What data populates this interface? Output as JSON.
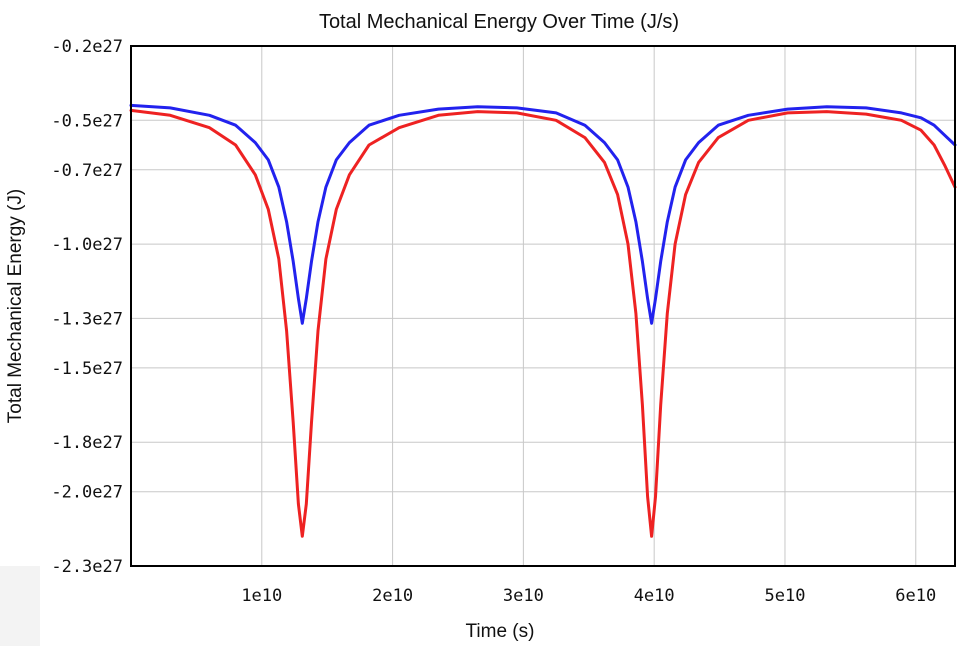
{
  "chart_data": {
    "type": "line",
    "title": "Total Mechanical Energy Over Time (J/s)",
    "xlabel": "Time (s)",
    "ylabel": "Total Mechanical Energy (J)",
    "xlim": [
      0,
      63000000000
    ],
    "ylim": [
      -2.3e+27,
      -2e+26
    ],
    "x_ticks": [
      {
        "value": 10000000000,
        "label": "1e10"
      },
      {
        "value": 20000000000,
        "label": "2e10"
      },
      {
        "value": 30000000000,
        "label": "3e10"
      },
      {
        "value": 40000000000,
        "label": "4e10"
      },
      {
        "value": 50000000000,
        "label": "5e10"
      },
      {
        "value": 60000000000,
        "label": "6e10"
      }
    ],
    "y_ticks": [
      {
        "value": -2e+26,
        "label": "-0.2e27"
      },
      {
        "value": -5e+26,
        "label": "-0.5e27"
      },
      {
        "value": -7e+26,
        "label": "-0.7e27"
      },
      {
        "value": -1e+27,
        "label": "-1.0e27"
      },
      {
        "value": -1.3e+27,
        "label": "-1.3e27"
      },
      {
        "value": -1.5e+27,
        "label": "-1.5e27"
      },
      {
        "value": -1.8e+27,
        "label": "-1.8e27"
      },
      {
        "value": -2e+27,
        "label": "-2.0e27"
      },
      {
        "value": -2.3e+27,
        "label": "-2.3e27"
      }
    ],
    "grid": true,
    "legend": "none",
    "series": [
      {
        "color": "#2222ee",
        "x": [
          0,
          3000000000,
          6000000000,
          8000000000,
          9500000000,
          10500000000,
          11300000000,
          11900000000,
          12400000000,
          12800000000,
          13100000000,
          13400000000,
          13800000000,
          14300000000,
          14900000000,
          15700000000,
          16700000000,
          18200000000,
          20500000000,
          23500000000,
          26500000000,
          29500000000,
          32500000000,
          34700000000,
          36200000000,
          37200000000,
          38000000000,
          38600000000,
          39100000000,
          39500000000,
          39800000000,
          40100000000,
          40500000000,
          41000000000,
          41600000000,
          42400000000,
          43400000000,
          44900000000,
          47200000000,
          50200000000,
          53200000000,
          56200000000,
          58900000000,
          60400000000,
          61400000000,
          62200000000,
          63000000000
        ],
        "y": [
          -4.4e+26,
          -4.5e+26,
          -4.8e+26,
          -5.2e+26,
          -5.9e+26,
          -6.6e+26,
          -7.7e+26,
          -9.1e+26,
          -1.07e+27,
          -1.22e+27,
          -1.32e+27,
          -1.22e+27,
          -1.07e+27,
          -9.1e+26,
          -7.7e+26,
          -6.6e+26,
          -5.9e+26,
          -5.2e+26,
          -4.8e+26,
          -4.55e+26,
          -4.45e+26,
          -4.5e+26,
          -4.7e+26,
          -5.2e+26,
          -5.9e+26,
          -6.6e+26,
          -7.7e+26,
          -9.1e+26,
          -1.07e+27,
          -1.22e+27,
          -1.32e+27,
          -1.22e+27,
          -1.07e+27,
          -9.1e+26,
          -7.7e+26,
          -6.6e+26,
          -5.9e+26,
          -5.2e+26,
          -4.8e+26,
          -4.55e+26,
          -4.45e+26,
          -4.5e+26,
          -4.7e+26,
          -4.9e+26,
          -5.2e+26,
          -5.6e+26,
          -6e+26
        ]
      },
      {
        "color": "#ee2222",
        "x": [
          0,
          3000000000,
          6000000000,
          8000000000,
          9500000000,
          10500000000,
          11300000000,
          11900000000,
          12400000000,
          12800000000,
          13100000000,
          13400000000,
          13800000000,
          14300000000,
          14900000000,
          15700000000,
          16700000000,
          18200000000,
          20500000000,
          23500000000,
          26500000000,
          29500000000,
          32500000000,
          34700000000,
          36200000000,
          37200000000,
          38000000000,
          38600000000,
          39100000000,
          39500000000,
          39800000000,
          40100000000,
          40500000000,
          41000000000,
          41600000000,
          42400000000,
          43400000000,
          44900000000,
          47200000000,
          50200000000,
          53200000000,
          56200000000,
          58900000000,
          60400000000,
          61400000000,
          62200000000,
          63000000000
        ],
        "y": [
          -4.6e+26,
          -4.8e+26,
          -5.3e+26,
          -6e+26,
          -7.2e+26,
          -8.6e+26,
          -1.06e+27,
          -1.35e+27,
          -1.72e+27,
          -2.05e+27,
          -2.18e+27,
          -2.05e+27,
          -1.72e+27,
          -1.35e+27,
          -1.06e+27,
          -8.6e+26,
          -7.2e+26,
          -6e+26,
          -5.3e+26,
          -4.8e+26,
          -4.65e+26,
          -4.7e+26,
          -5e+26,
          -5.7e+26,
          -6.7e+26,
          -8e+26,
          -1e+27,
          -1.28e+27,
          -1.65e+27,
          -2.02e+27,
          -2.18e+27,
          -2.02e+27,
          -1.65e+27,
          -1.28e+27,
          -1e+27,
          -8e+26,
          -6.7e+26,
          -5.7e+26,
          -5e+26,
          -4.7e+26,
          -4.65e+26,
          -4.75e+26,
          -5e+26,
          -5.4e+26,
          -6e+26,
          -6.8e+26,
          -7.7e+26
        ]
      }
    ]
  }
}
